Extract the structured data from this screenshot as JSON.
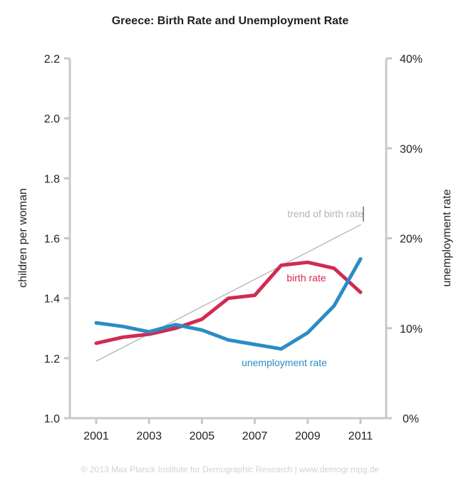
{
  "chart_data": {
    "type": "line",
    "title": "Greece: Birth Rate and Unemployment Rate",
    "xlabel": "",
    "ylabel": "children per woman",
    "ylabel_right": "unemployment rate",
    "x": [
      2001,
      2002,
      2003,
      2004,
      2005,
      2006,
      2007,
      2008,
      2009,
      2010,
      2011
    ],
    "x_ticks": [
      "2001",
      "2003",
      "2005",
      "2007",
      "2009",
      "2011"
    ],
    "x_tick_values": [
      2001,
      2003,
      2005,
      2007,
      2009,
      2011
    ],
    "xlim": [
      2000,
      2012
    ],
    "ylim": [
      1.0,
      2.2
    ],
    "y_ticks": [
      "1.0",
      "1.2",
      "1.4",
      "1.6",
      "1.8",
      "2.0",
      "2.2"
    ],
    "y_tick_values": [
      1.0,
      1.2,
      1.4,
      1.6,
      1.8,
      2.0,
      2.2
    ],
    "ylim_right": [
      0,
      40
    ],
    "y_ticks_right": [
      "0%",
      "10%",
      "20%",
      "30%",
      "40%"
    ],
    "y_tick_values_right": [
      0,
      10,
      20,
      30,
      40
    ],
    "grid": false,
    "series": [
      {
        "name": "birth rate",
        "axis": "left",
        "color": "#d12b52",
        "values": [
          1.25,
          1.27,
          1.28,
          1.3,
          1.33,
          1.4,
          1.41,
          1.51,
          1.52,
          1.5,
          1.42
        ]
      },
      {
        "name": "unemployment rate",
        "axis": "right",
        "color": "#2b8cc4",
        "values": [
          10.6,
          10.2,
          9.6,
          10.4,
          9.8,
          8.7,
          8.2,
          7.7,
          9.5,
          12.5,
          17.7
        ]
      },
      {
        "name": "trend of birth rate",
        "axis": "left",
        "color": "#b5b5b5",
        "x": [
          2001,
          2011
        ],
        "values": [
          1.19,
          1.645
        ]
      }
    ],
    "annotations": [
      {
        "text": "birth rate",
        "x": 2010,
        "y": 1.47,
        "color": "#d12b52"
      },
      {
        "text": "unemployment rate",
        "x": 2009,
        "y": 1.19,
        "color": "#2b8cc4"
      },
      {
        "text": "trend of birth rate",
        "x": 2009.8,
        "y": 1.68,
        "color": "#b5b5b5"
      }
    ],
    "footer": "© 2013 Max Planck Institute for Demographic Research | www.demogr.mpg.de"
  }
}
